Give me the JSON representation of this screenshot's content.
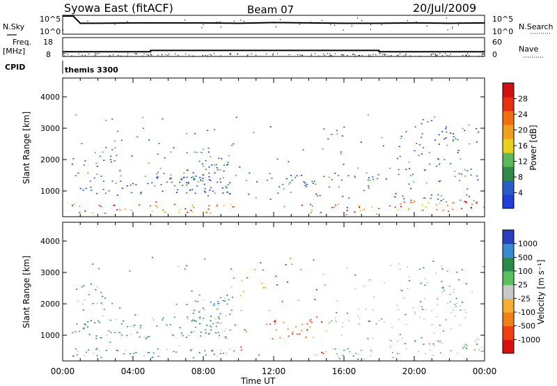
{
  "header": {
    "station": "Syowa East (fitACF)",
    "beam": "Beam 07",
    "date": "20/Jul/2009"
  },
  "noise_panel": {
    "left_label": "N.Sky",
    "right_label": "N.Search",
    "left_ticks": [
      "10^5",
      "10^0"
    ],
    "right_ticks": [
      "10^5",
      "10^0"
    ]
  },
  "freq_panel": {
    "left_label_1": "Freq.",
    "left_label_2": "[MHz]",
    "right_label": "Nave",
    "left_ticks": [
      "18",
      "8"
    ],
    "right_ticks": [
      "60",
      "0"
    ]
  },
  "cpid": {
    "label": "CPID",
    "value": "themis 3300"
  },
  "x_axis": {
    "label": "Time UT",
    "ticks": [
      "00:00",
      "04:00",
      "08:00",
      "12:00",
      "16:00",
      "20:00",
      "00:00"
    ]
  },
  "colors": {
    "power": [
      "#1f3fd8",
      "#2a5cc8",
      "#2f8a4a",
      "#5db85a",
      "#e6d020",
      "#f0a020",
      "#f07010",
      "#e83010",
      "#d01010"
    ],
    "velocity": [
      "#2a3fbf",
      "#3a8ad0",
      "#2a8a4a",
      "#5dc060",
      "#c8c8c8",
      "#f5b030",
      "#f08018",
      "#f04010",
      "#d81010"
    ]
  },
  "chart_data": [
    {
      "type": "line",
      "panel": "noise",
      "xlabel": "",
      "ylabel": "N.Sky",
      "x_range": [
        0,
        24
      ],
      "series": [
        {
          "name": "N.Sky",
          "x": [
            0.0,
            0.3,
            0.6,
            1.0,
            2.0,
            4.0,
            6.0,
            8.0,
            10.0,
            12.0,
            14.0,
            16.0,
            18.0,
            20.0,
            22.0,
            24.0
          ],
          "values": [
            5.0,
            5.0,
            5.0,
            3.0,
            3.0,
            3.1,
            3.1,
            3.1,
            3.0,
            3.2,
            3.1,
            3.0,
            3.0,
            3.1,
            3.0,
            3.1
          ]
        }
      ]
    },
    {
      "type": "line",
      "panel": "frequency",
      "xlabel": "",
      "ylabel": "Freq. [MHz]",
      "x_range": [
        0,
        24
      ],
      "ylim": [
        8,
        18
      ],
      "series": [
        {
          "name": "Freq.",
          "x": [
            0,
            5,
            5,
            18,
            18,
            24
          ],
          "values": [
            10.5,
            10.5,
            11.2,
            11.2,
            10.5,
            10.5
          ]
        }
      ]
    },
    {
      "type": "heatmap",
      "panel": "power",
      "xlabel": "Time UT",
      "ylabel": "Slant Range [km]",
      "x_range": [
        0,
        24
      ],
      "ylim": [
        180,
        4600
      ],
      "yticks": [
        "1000",
        "2000",
        "3000",
        "4000"
      ],
      "colorbar_label": "Power [dB]",
      "colorbar_ticks": [
        "4",
        "8",
        "12",
        "16",
        "20",
        "24",
        "28"
      ],
      "colorbar_range": [
        0,
        32
      ]
    },
    {
      "type": "heatmap",
      "panel": "velocity",
      "xlabel": "Time UT",
      "ylabel": "Slant Range [km]",
      "x_range": [
        0,
        24
      ],
      "ylim": [
        180,
        4600
      ],
      "yticks": [
        "1000",
        "2000",
        "3000",
        "4000"
      ],
      "colorbar_label": "Velocity [m s⁻¹]",
      "colorbar_ticks": [
        "1000",
        "500",
        "100",
        "25",
        "-25",
        "-100",
        "-500",
        "-1000"
      ]
    }
  ]
}
